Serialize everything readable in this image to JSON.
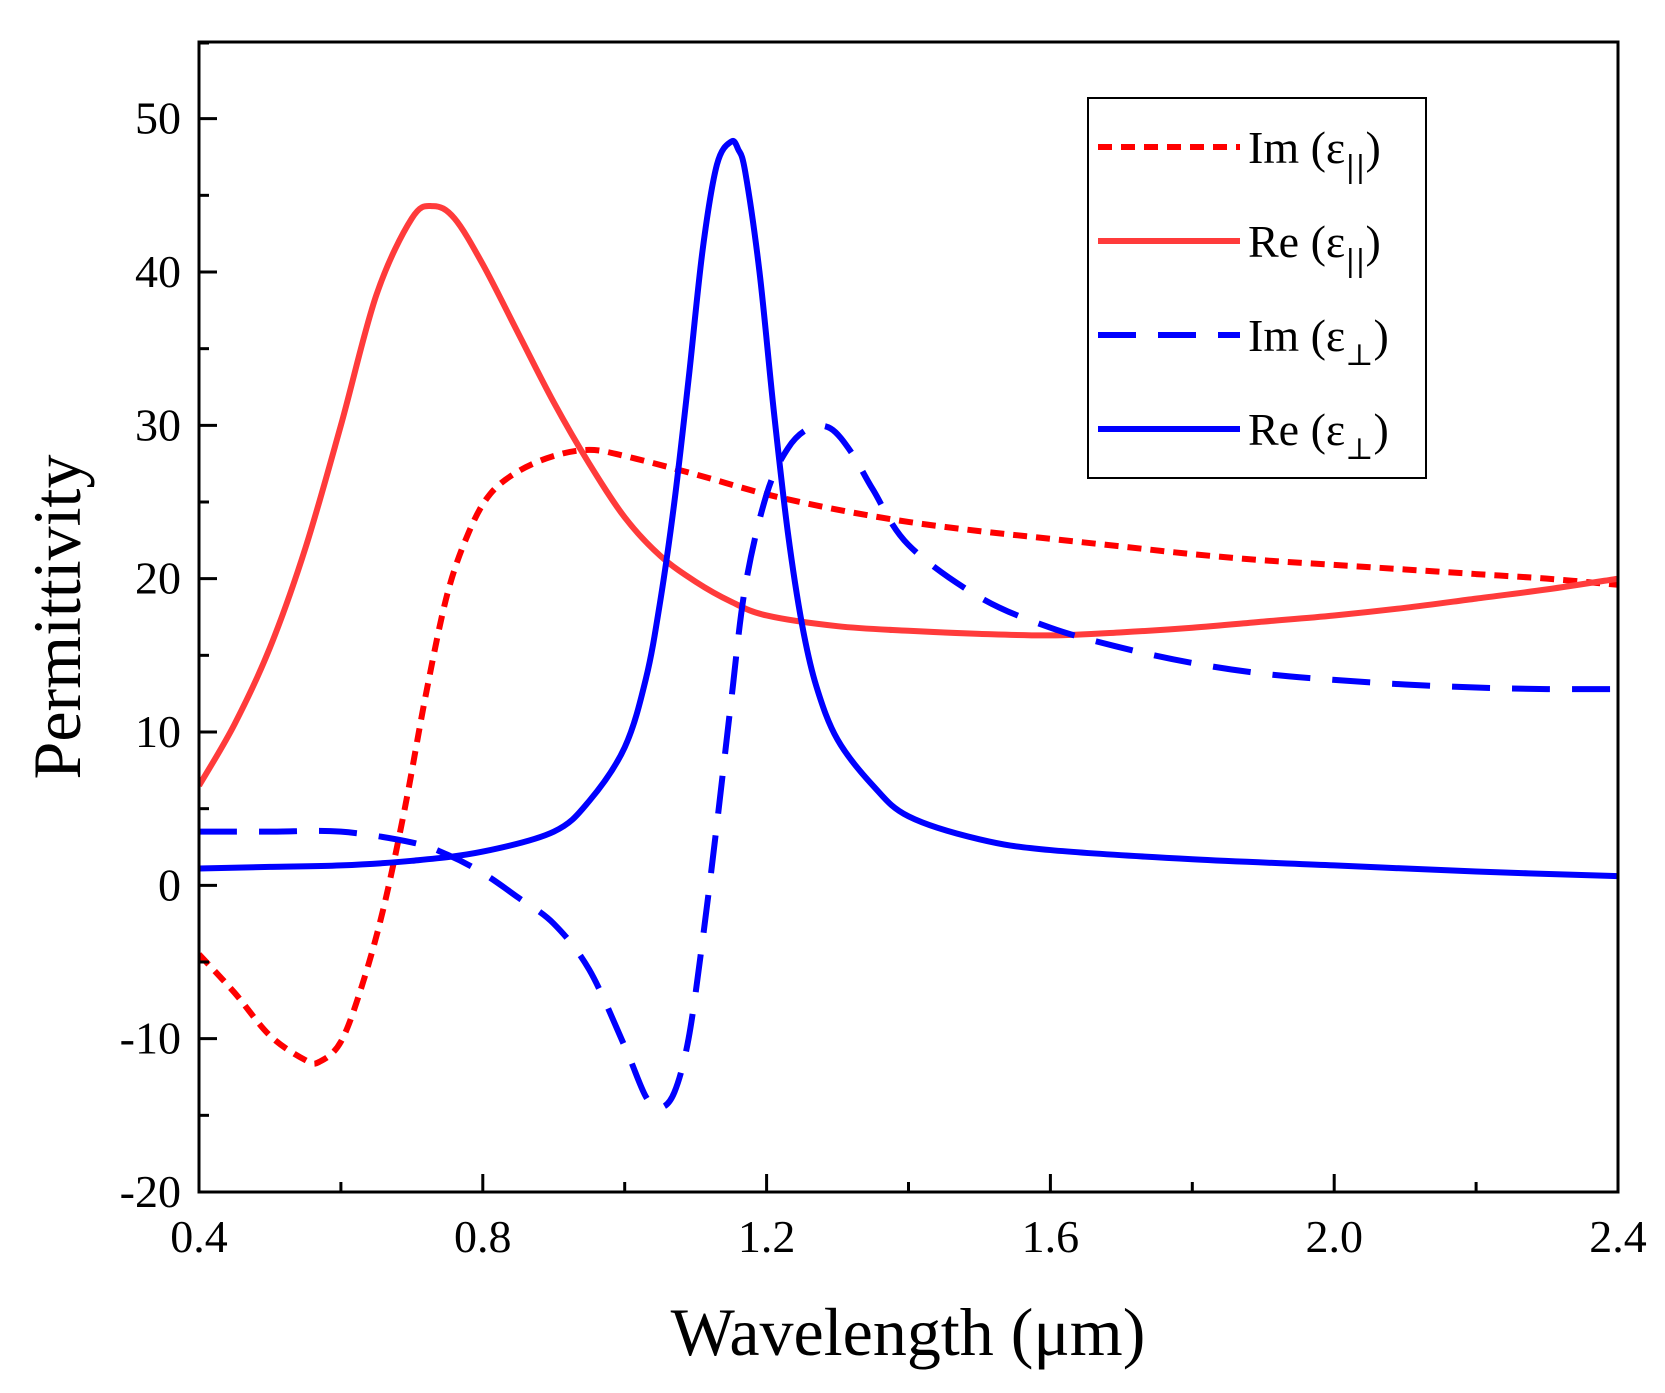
{
  "chart_data": {
    "type": "line",
    "title": "",
    "xlabel": "Wavelength (μm)",
    "ylabel": "Permittivity",
    "xlim": [
      0.4,
      2.4
    ],
    "ylim": [
      -20,
      55
    ],
    "xticks": [
      0.4,
      0.8,
      1.2,
      1.6,
      2.0,
      2.4
    ],
    "xtick_labels": [
      "0.4",
      "0.8",
      "1.2",
      "1.6",
      "2.0",
      "2.4"
    ],
    "yticks": [
      -20,
      -10,
      0,
      10,
      20,
      30,
      40,
      50
    ],
    "ytick_labels": [
      "-20",
      "-10",
      "0",
      "10",
      "20",
      "30",
      "40",
      "50"
    ],
    "grid": false,
    "legend_position": "top-right",
    "series": [
      {
        "name": "Im (ε∥)",
        "label_main": "Im (ε",
        "label_sub": "||",
        "label_close": ")",
        "color": "#ff0000",
        "dash": "short-dash",
        "x": [
          0.4,
          0.45,
          0.5,
          0.55,
          0.57,
          0.6,
          0.63,
          0.66,
          0.69,
          0.72,
          0.75,
          0.78,
          0.81,
          0.85,
          0.9,
          0.95,
          1.0,
          1.1,
          1.2,
          1.3,
          1.4,
          1.5,
          1.6,
          1.7,
          1.8,
          1.9,
          2.0,
          2.1,
          2.2,
          2.3,
          2.4
        ],
        "y": [
          -4.5,
          -7.0,
          -9.8,
          -11.4,
          -11.5,
          -10.2,
          -6.5,
          -1.5,
          5.0,
          12.5,
          19.0,
          23.0,
          25.5,
          27.0,
          28.0,
          28.4,
          28.0,
          26.8,
          25.5,
          24.5,
          23.7,
          23.1,
          22.6,
          22.1,
          21.6,
          21.2,
          20.9,
          20.6,
          20.3,
          20.0,
          19.6
        ]
      },
      {
        "name": "Re (ε∥)",
        "label_main": "Re (ε",
        "label_sub": "||",
        "label_close": ")",
        "color": "#ff3b3b",
        "dash": "solid",
        "x": [
          0.4,
          0.45,
          0.5,
          0.55,
          0.6,
          0.65,
          0.7,
          0.73,
          0.76,
          0.8,
          0.85,
          0.9,
          0.95,
          1.0,
          1.05,
          1.1,
          1.15,
          1.2,
          1.3,
          1.4,
          1.5,
          1.6,
          1.7,
          1.8,
          1.9,
          2.0,
          2.1,
          2.2,
          2.3,
          2.4
        ],
        "y": [
          6.5,
          10.5,
          15.5,
          22.0,
          30.0,
          38.5,
          43.5,
          44.3,
          43.5,
          40.5,
          36.0,
          31.5,
          27.5,
          24.0,
          21.5,
          19.8,
          18.5,
          17.6,
          16.9,
          16.6,
          16.4,
          16.3,
          16.5,
          16.8,
          17.2,
          17.6,
          18.1,
          18.7,
          19.3,
          20.0
        ]
      },
      {
        "name": "Im (ε⊥)",
        "label_main": "Im (ε",
        "label_sub": "⊥",
        "label_close": ")",
        "color": "#0000ff",
        "dash": "long-dash",
        "x": [
          0.4,
          0.5,
          0.6,
          0.7,
          0.75,
          0.8,
          0.85,
          0.9,
          0.95,
          1.0,
          1.03,
          1.05,
          1.07,
          1.09,
          1.11,
          1.13,
          1.15,
          1.17,
          1.2,
          1.23,
          1.26,
          1.29,
          1.32,
          1.35,
          1.4,
          1.5,
          1.6,
          1.7,
          1.8,
          1.9,
          2.0,
          2.1,
          2.2,
          2.3,
          2.4
        ],
        "y": [
          3.5,
          3.5,
          3.5,
          2.8,
          2.0,
          0.8,
          -0.8,
          -2.5,
          -5.5,
          -10.5,
          -13.8,
          -14.5,
          -13.5,
          -10.0,
          -3.5,
          4.0,
          12.0,
          19.5,
          25.5,
          28.5,
          29.8,
          29.8,
          28.2,
          25.8,
          22.2,
          18.8,
          16.8,
          15.5,
          14.5,
          13.8,
          13.4,
          13.1,
          12.9,
          12.8,
          12.8
        ]
      },
      {
        "name": "Re (ε⊥)",
        "label_main": "Re (ε",
        "label_sub": "⊥",
        "label_close": ")",
        "color": "#0000ff",
        "dash": "solid",
        "x": [
          0.4,
          0.5,
          0.6,
          0.7,
          0.8,
          0.9,
          0.95,
          1.0,
          1.03,
          1.05,
          1.07,
          1.09,
          1.11,
          1.13,
          1.15,
          1.16,
          1.17,
          1.19,
          1.21,
          1.23,
          1.25,
          1.27,
          1.3,
          1.35,
          1.4,
          1.5,
          1.6,
          1.8,
          2.0,
          2.2,
          2.4
        ],
        "y": [
          1.1,
          1.2,
          1.3,
          1.6,
          2.2,
          3.5,
          5.5,
          9.0,
          13.5,
          18.5,
          25.0,
          33.0,
          41.5,
          47.0,
          48.5,
          48.0,
          46.5,
          40.0,
          31.0,
          23.0,
          17.0,
          13.0,
          9.5,
          6.5,
          4.5,
          3.0,
          2.3,
          1.7,
          1.3,
          0.9,
          0.6
        ]
      }
    ]
  }
}
